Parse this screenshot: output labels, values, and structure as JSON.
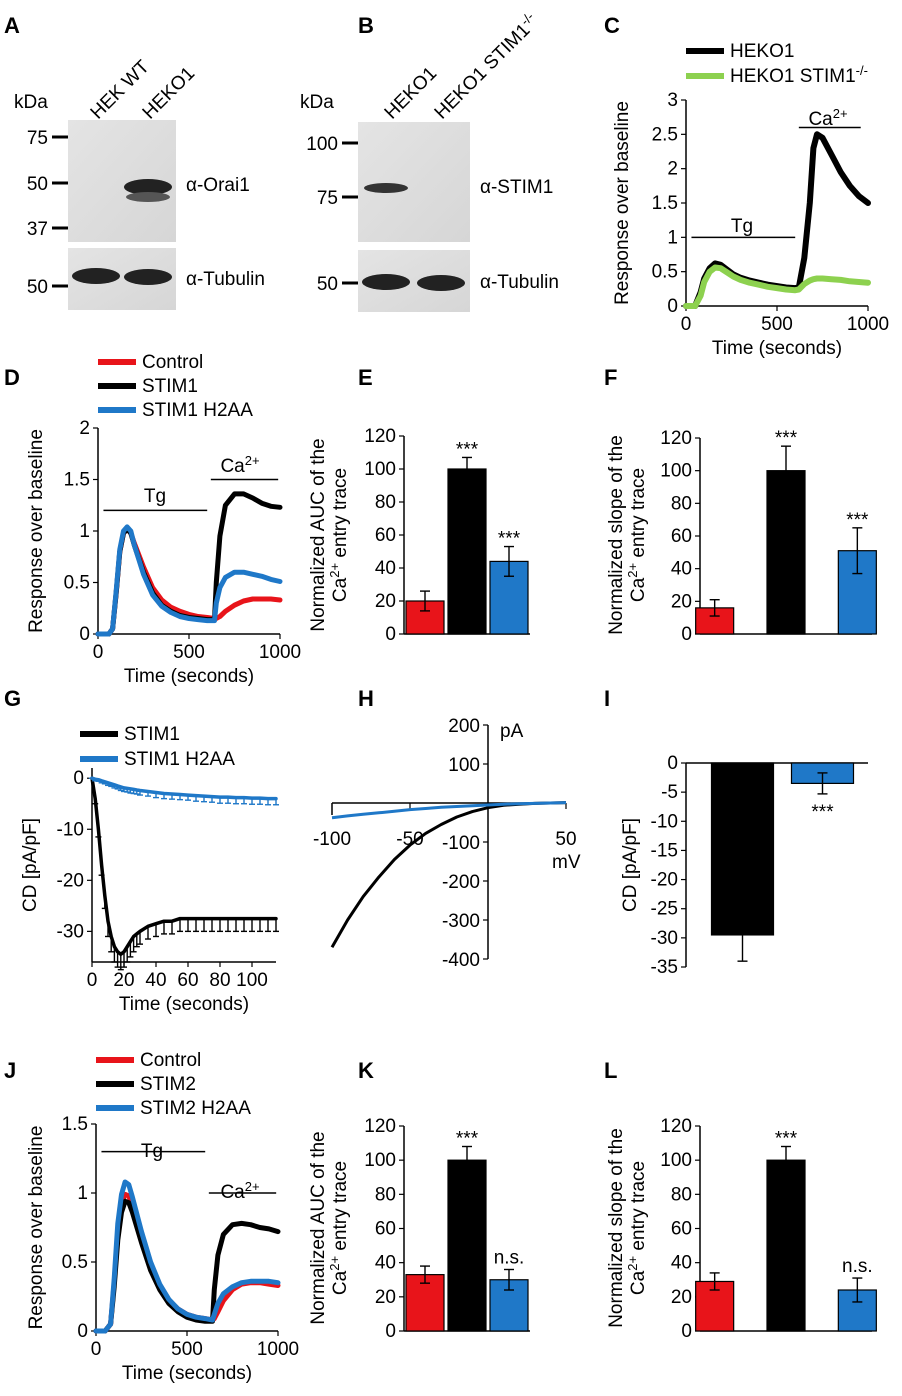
{
  "panels": {
    "A": {
      "letter": "A",
      "kda": "kDa",
      "lanes": [
        "HEK WT",
        "HEKO1"
      ],
      "markers_top": [
        "75",
        "50",
        "37"
      ],
      "markers_bottom": [
        "50"
      ],
      "label_top": "α-Orai1",
      "label_bottom": "α-Tubulin"
    },
    "B": {
      "letter": "B",
      "kda": "kDa",
      "lanes": [
        "HEKO1",
        "HEKO1 STIM1"
      ],
      "lane2_sup": "-/-",
      "markers_top": [
        "100",
        "75"
      ],
      "markers_bottom": [
        "50"
      ],
      "label_top": "α-STIM1",
      "label_bottom": "α-Tubulin"
    },
    "C": {
      "letter": "C",
      "tg": "Tg",
      "ca": "Ca",
      "ca_sup": "2+"
    },
    "D": {
      "letter": "D",
      "tg": "Tg",
      "ca": "Ca",
      "ca_sup": "2+"
    },
    "E": {
      "letter": "E",
      "ylabel1": "Normalized AUC of the",
      "ylabel2a": "Ca",
      "ylabel2sup": "2+",
      "ylabel2b": " entry trace"
    },
    "F": {
      "letter": "F",
      "ylabel1": "Normalized slope of the",
      "ylabel2a": "Ca",
      "ylabel2sup": "2+",
      "ylabel2b": " entry trace"
    },
    "G": {
      "letter": "G"
    },
    "H": {
      "letter": "H",
      "unit_y": "pA",
      "unit_x": "mV"
    },
    "I": {
      "letter": "I"
    },
    "J": {
      "letter": "J",
      "tg": "Tg",
      "ca": "Ca",
      "ca_sup": "2+"
    },
    "K": {
      "letter": "K",
      "ylabel1": "Normalized AUC of the",
      "ylabel2a": "Ca",
      "ylabel2sup": "2+",
      "ylabel2b": " entry trace"
    },
    "L": {
      "letter": "L",
      "ylabel1": "Normalized slope of the",
      "ylabel2a": "Ca",
      "ylabel2sup": "2+",
      "ylabel2b": " entry trace"
    }
  },
  "chart_data": [
    {
      "id": "C",
      "type": "line",
      "xlabel": "Time (seconds)",
      "ylabel": "Response over baseline",
      "xlim": [
        0,
        1000
      ],
      "ylim": [
        0,
        3
      ],
      "xticks": [
        0,
        500,
        1000
      ],
      "yticks": [
        0,
        0.5,
        1,
        1.5,
        2,
        2.5,
        3
      ],
      "series": [
        {
          "name": "HEKO1",
          "color": "#000000",
          "sup": "",
          "x": [
            0,
            50,
            80,
            100,
            130,
            160,
            190,
            220,
            260,
            300,
            350,
            400,
            450,
            500,
            550,
            600,
            620,
            650,
            680,
            700,
            720,
            750,
            800,
            850,
            900,
            950,
            1000
          ],
          "y": [
            0,
            0,
            0.2,
            0.4,
            0.55,
            0.62,
            0.6,
            0.54,
            0.46,
            0.41,
            0.37,
            0.34,
            0.31,
            0.29,
            0.27,
            0.26,
            0.27,
            0.7,
            1.5,
            2.3,
            2.5,
            2.45,
            2.2,
            1.95,
            1.75,
            1.6,
            1.5
          ]
        },
        {
          "name": "HEKO1 STIM1",
          "color": "#8dd14f",
          "sup": "-/-",
          "x": [
            0,
            50,
            80,
            100,
            130,
            160,
            190,
            220,
            260,
            300,
            350,
            400,
            450,
            500,
            550,
            600,
            620,
            650,
            680,
            700,
            720,
            750,
            800,
            850,
            900,
            950,
            1000
          ],
          "y": [
            0,
            0,
            0.15,
            0.35,
            0.5,
            0.56,
            0.55,
            0.5,
            0.43,
            0.38,
            0.34,
            0.31,
            0.28,
            0.26,
            0.24,
            0.23,
            0.24,
            0.32,
            0.37,
            0.39,
            0.4,
            0.4,
            0.39,
            0.38,
            0.36,
            0.35,
            0.34
          ]
        }
      ]
    },
    {
      "id": "D",
      "type": "line",
      "xlabel": "Time (seconds)",
      "ylabel": "Response over baseline",
      "xlim": [
        0,
        1000
      ],
      "ylim": [
        0,
        2
      ],
      "xticks": [
        0,
        500,
        1000
      ],
      "yticks": [
        0,
        0.5,
        1,
        1.5,
        2
      ],
      "series": [
        {
          "name": "Control",
          "color": "#e8141a",
          "x": [
            0,
            60,
            80,
            100,
            120,
            140,
            160,
            180,
            200,
            250,
            300,
            350,
            400,
            450,
            500,
            550,
            600,
            640,
            650,
            670,
            700,
            750,
            800,
            850,
            900,
            950,
            1000
          ],
          "y": [
            0,
            0,
            0.05,
            0.4,
            0.8,
            0.98,
            1.02,
            0.98,
            0.88,
            0.65,
            0.45,
            0.33,
            0.26,
            0.22,
            0.19,
            0.17,
            0.16,
            0.15,
            0.15,
            0.17,
            0.22,
            0.28,
            0.32,
            0.34,
            0.34,
            0.34,
            0.33
          ]
        },
        {
          "name": "STIM1",
          "color": "#000000",
          "x": [
            0,
            60,
            80,
            100,
            120,
            140,
            160,
            180,
            200,
            250,
            300,
            350,
            400,
            450,
            500,
            550,
            600,
            640,
            650,
            670,
            700,
            750,
            800,
            850,
            900,
            950,
            1000
          ],
          "y": [
            0,
            0,
            0.05,
            0.4,
            0.8,
            0.98,
            1.02,
            0.98,
            0.86,
            0.6,
            0.4,
            0.28,
            0.22,
            0.18,
            0.16,
            0.15,
            0.14,
            0.14,
            0.5,
            0.95,
            1.25,
            1.36,
            1.36,
            1.32,
            1.27,
            1.24,
            1.23
          ]
        },
        {
          "name": "STIM1 H2AA",
          "color": "#1f78c8",
          "x": [
            0,
            60,
            80,
            100,
            120,
            140,
            160,
            180,
            200,
            250,
            300,
            350,
            400,
            450,
            500,
            550,
            600,
            640,
            650,
            670,
            700,
            750,
            800,
            850,
            900,
            950,
            1000
          ],
          "y": [
            0,
            0,
            0.05,
            0.42,
            0.82,
            1.0,
            1.04,
            1.0,
            0.86,
            0.58,
            0.38,
            0.27,
            0.21,
            0.17,
            0.15,
            0.14,
            0.13,
            0.13,
            0.3,
            0.45,
            0.55,
            0.6,
            0.6,
            0.58,
            0.56,
            0.53,
            0.51
          ]
        }
      ]
    },
    {
      "id": "E",
      "type": "bar",
      "ylim": [
        0,
        120
      ],
      "yticks": [
        0,
        20,
        40,
        60,
        80,
        100,
        120
      ],
      "values": [
        20,
        100,
        44
      ],
      "errors": [
        6,
        7,
        9
      ],
      "colors": [
        "#e8141a",
        "#000000",
        "#1f78c8"
      ],
      "annotations": [
        "",
        "***",
        "***"
      ]
    },
    {
      "id": "F",
      "type": "bar",
      "ylim": [
        0,
        120
      ],
      "yticks": [
        0,
        20,
        40,
        60,
        80,
        100,
        120
      ],
      "values": [
        16,
        100,
        51
      ],
      "errors": [
        5,
        15,
        14
      ],
      "colors": [
        "#e8141a",
        "#000000",
        "#1f78c8"
      ],
      "annotations": [
        "",
        "***",
        "***"
      ]
    },
    {
      "id": "G",
      "type": "line",
      "xlabel": "Time (seconds)",
      "ylabel": "CD [pA/pF]",
      "xlim": [
        0,
        115
      ],
      "ylim": [
        -36,
        2
      ],
      "xticks": [
        0,
        20,
        40,
        60,
        80,
        100
      ],
      "yticks": [
        0,
        -10,
        -20,
        -30
      ],
      "series": [
        {
          "name": "STIM1",
          "color": "#000000",
          "x": [
            0,
            2,
            4,
            6,
            8,
            10,
            12,
            14,
            16,
            18,
            20,
            22,
            24,
            26,
            28,
            30,
            35,
            40,
            45,
            50,
            55,
            60,
            65,
            70,
            75,
            80,
            85,
            90,
            95,
            100,
            105,
            110,
            115
          ],
          "y": [
            0,
            -4,
            -10,
            -17,
            -23,
            -28,
            -31,
            -33,
            -34,
            -34.5,
            -34,
            -33,
            -32,
            -31,
            -30.5,
            -30,
            -29,
            -28.5,
            -28,
            -28,
            -27.5,
            -27.5,
            -27.5,
            -27.5,
            -27.5,
            -27.5,
            -27.5,
            -27.5,
            -27.5,
            -27.5,
            -27.5,
            -27.5,
            -27.5
          ],
          "err": [
            0,
            1,
            1.5,
            2,
            2.5,
            3,
            3,
            3,
            3,
            3,
            3,
            3,
            3,
            3,
            2.5,
            2.5,
            2.5,
            2.5,
            2.5,
            2.5,
            2.5,
            2.5,
            2.5,
            2.5,
            2.5,
            2.5,
            2.5,
            2.5,
            2.5,
            2.5,
            2.5,
            2.5,
            2.5
          ]
        },
        {
          "name": "STIM1 H2AA",
          "color": "#1f78c8",
          "x": [
            0,
            2,
            4,
            6,
            8,
            10,
            12,
            14,
            16,
            18,
            20,
            22,
            24,
            26,
            28,
            30,
            35,
            40,
            45,
            50,
            55,
            60,
            65,
            70,
            75,
            80,
            85,
            90,
            95,
            100,
            105,
            110,
            115
          ],
          "y": [
            0,
            -0.2,
            -0.3,
            -0.5,
            -0.7,
            -0.9,
            -1.1,
            -1.3,
            -1.5,
            -1.7,
            -1.9,
            -2.0,
            -2.1,
            -2.2,
            -2.3,
            -2.4,
            -2.6,
            -2.8,
            -3.0,
            -3.1,
            -3.2,
            -3.3,
            -3.4,
            -3.5,
            -3.6,
            -3.7,
            -3.7,
            -3.8,
            -3.8,
            -3.9,
            -3.9,
            -4.0,
            -4.0
          ],
          "err": [
            0,
            0.3,
            0.3,
            0.4,
            0.4,
            0.5,
            0.5,
            0.6,
            0.6,
            0.7,
            0.7,
            0.7,
            0.8,
            0.8,
            0.8,
            0.9,
            0.9,
            1,
            1,
            1,
            1,
            1,
            1.1,
            1.1,
            1.1,
            1.2,
            1.2,
            1.2,
            1.2,
            1.2,
            1.2,
            1.2,
            1.2
          ]
        }
      ]
    },
    {
      "id": "H",
      "type": "line",
      "xlim": [
        -100,
        50
      ],
      "ylim": [
        -400,
        200
      ],
      "xticks": [
        -100,
        -50,
        50
      ],
      "yticks": [
        200,
        100,
        -100,
        -200,
        -300,
        -400
      ],
      "series": [
        {
          "name": "STIM1",
          "color": "#000000",
          "x": [
            -100,
            -90,
            -80,
            -70,
            -60,
            -50,
            -40,
            -30,
            -20,
            -10,
            0,
            10,
            20,
            30,
            40,
            50
          ],
          "y": [
            -370,
            -300,
            -240,
            -190,
            -145,
            -108,
            -78,
            -55,
            -36,
            -22,
            -12,
            -6,
            -3,
            -1,
            0,
            1
          ]
        },
        {
          "name": "STIM1 H2AA",
          "color": "#1f78c8",
          "x": [
            -100,
            -90,
            -80,
            -70,
            -60,
            -50,
            -40,
            -30,
            -20,
            -10,
            0,
            10,
            20,
            30,
            40,
            50
          ],
          "y": [
            -38,
            -33,
            -29,
            -25,
            -21,
            -17,
            -14,
            -11,
            -9,
            -7,
            -5,
            -3,
            -2,
            -1,
            0,
            1
          ]
        }
      ]
    },
    {
      "id": "I",
      "type": "bar",
      "ylabel": "CD [pA/pF]",
      "ylim": [
        -35,
        0
      ],
      "yticks": [
        0,
        -5,
        -10,
        -15,
        -20,
        -25,
        -30,
        -35
      ],
      "values": [
        -29.5,
        -3.5
      ],
      "errors": [
        4.5,
        1.8
      ],
      "colors": [
        "#000000",
        "#1f78c8"
      ],
      "annotations": [
        "",
        "***"
      ]
    },
    {
      "id": "J",
      "type": "line",
      "xlabel": "Time (seconds)",
      "ylabel": "Response over baseline",
      "xlim": [
        0,
        1000
      ],
      "ylim": [
        0,
        1.5
      ],
      "xticks": [
        0,
        500,
        1000
      ],
      "yticks": [
        0,
        0.5,
        1,
        1.5
      ],
      "series": [
        {
          "name": "Control",
          "color": "#e8141a",
          "x": [
            0,
            50,
            80,
            100,
            120,
            140,
            160,
            180,
            200,
            250,
            300,
            350,
            400,
            450,
            500,
            550,
            600,
            640,
            650,
            670,
            700,
            750,
            800,
            850,
            900,
            950,
            1000
          ],
          "y": [
            0,
            0,
            0.05,
            0.35,
            0.72,
            0.92,
            0.99,
            0.98,
            0.9,
            0.67,
            0.47,
            0.32,
            0.22,
            0.16,
            0.12,
            0.1,
            0.09,
            0.08,
            0.09,
            0.14,
            0.22,
            0.3,
            0.34,
            0.35,
            0.35,
            0.34,
            0.33
          ]
        },
        {
          "name": "STIM2",
          "color": "#000000",
          "x": [
            0,
            50,
            80,
            100,
            120,
            140,
            160,
            180,
            200,
            250,
            300,
            350,
            400,
            450,
            500,
            550,
            600,
            640,
            650,
            670,
            700,
            750,
            800,
            850,
            900,
            950,
            1000
          ],
          "y": [
            0,
            0,
            0.05,
            0.32,
            0.66,
            0.86,
            0.94,
            0.93,
            0.86,
            0.64,
            0.44,
            0.3,
            0.2,
            0.14,
            0.1,
            0.08,
            0.07,
            0.07,
            0.3,
            0.55,
            0.7,
            0.77,
            0.78,
            0.77,
            0.75,
            0.74,
            0.72
          ]
        },
        {
          "name": "STIM2 H2AA",
          "color": "#1f78c8",
          "x": [
            0,
            50,
            80,
            100,
            120,
            140,
            160,
            180,
            200,
            250,
            300,
            350,
            400,
            450,
            500,
            550,
            600,
            640,
            650,
            670,
            700,
            750,
            800,
            850,
            900,
            950,
            1000
          ],
          "y": [
            0,
            0,
            0.05,
            0.38,
            0.78,
            0.99,
            1.08,
            1.06,
            0.97,
            0.72,
            0.5,
            0.34,
            0.23,
            0.16,
            0.12,
            0.1,
            0.09,
            0.08,
            0.12,
            0.2,
            0.27,
            0.32,
            0.35,
            0.36,
            0.36,
            0.36,
            0.35
          ]
        }
      ]
    },
    {
      "id": "K",
      "type": "bar",
      "ylim": [
        0,
        120
      ],
      "yticks": [
        0,
        20,
        40,
        60,
        80,
        100,
        120
      ],
      "values": [
        33,
        100,
        30
      ],
      "errors": [
        5,
        8,
        6
      ],
      "colors": [
        "#e8141a",
        "#000000",
        "#1f78c8"
      ],
      "annotations": [
        "",
        "***",
        "n.s."
      ]
    },
    {
      "id": "L",
      "type": "bar",
      "ylim": [
        0,
        120
      ],
      "yticks": [
        0,
        20,
        40,
        60,
        80,
        100,
        120
      ],
      "values": [
        29,
        100,
        24
      ],
      "errors": [
        5,
        8,
        7
      ],
      "colors": [
        "#e8141a",
        "#000000",
        "#1f78c8"
      ],
      "annotations": [
        "",
        "***",
        "n.s."
      ]
    }
  ]
}
